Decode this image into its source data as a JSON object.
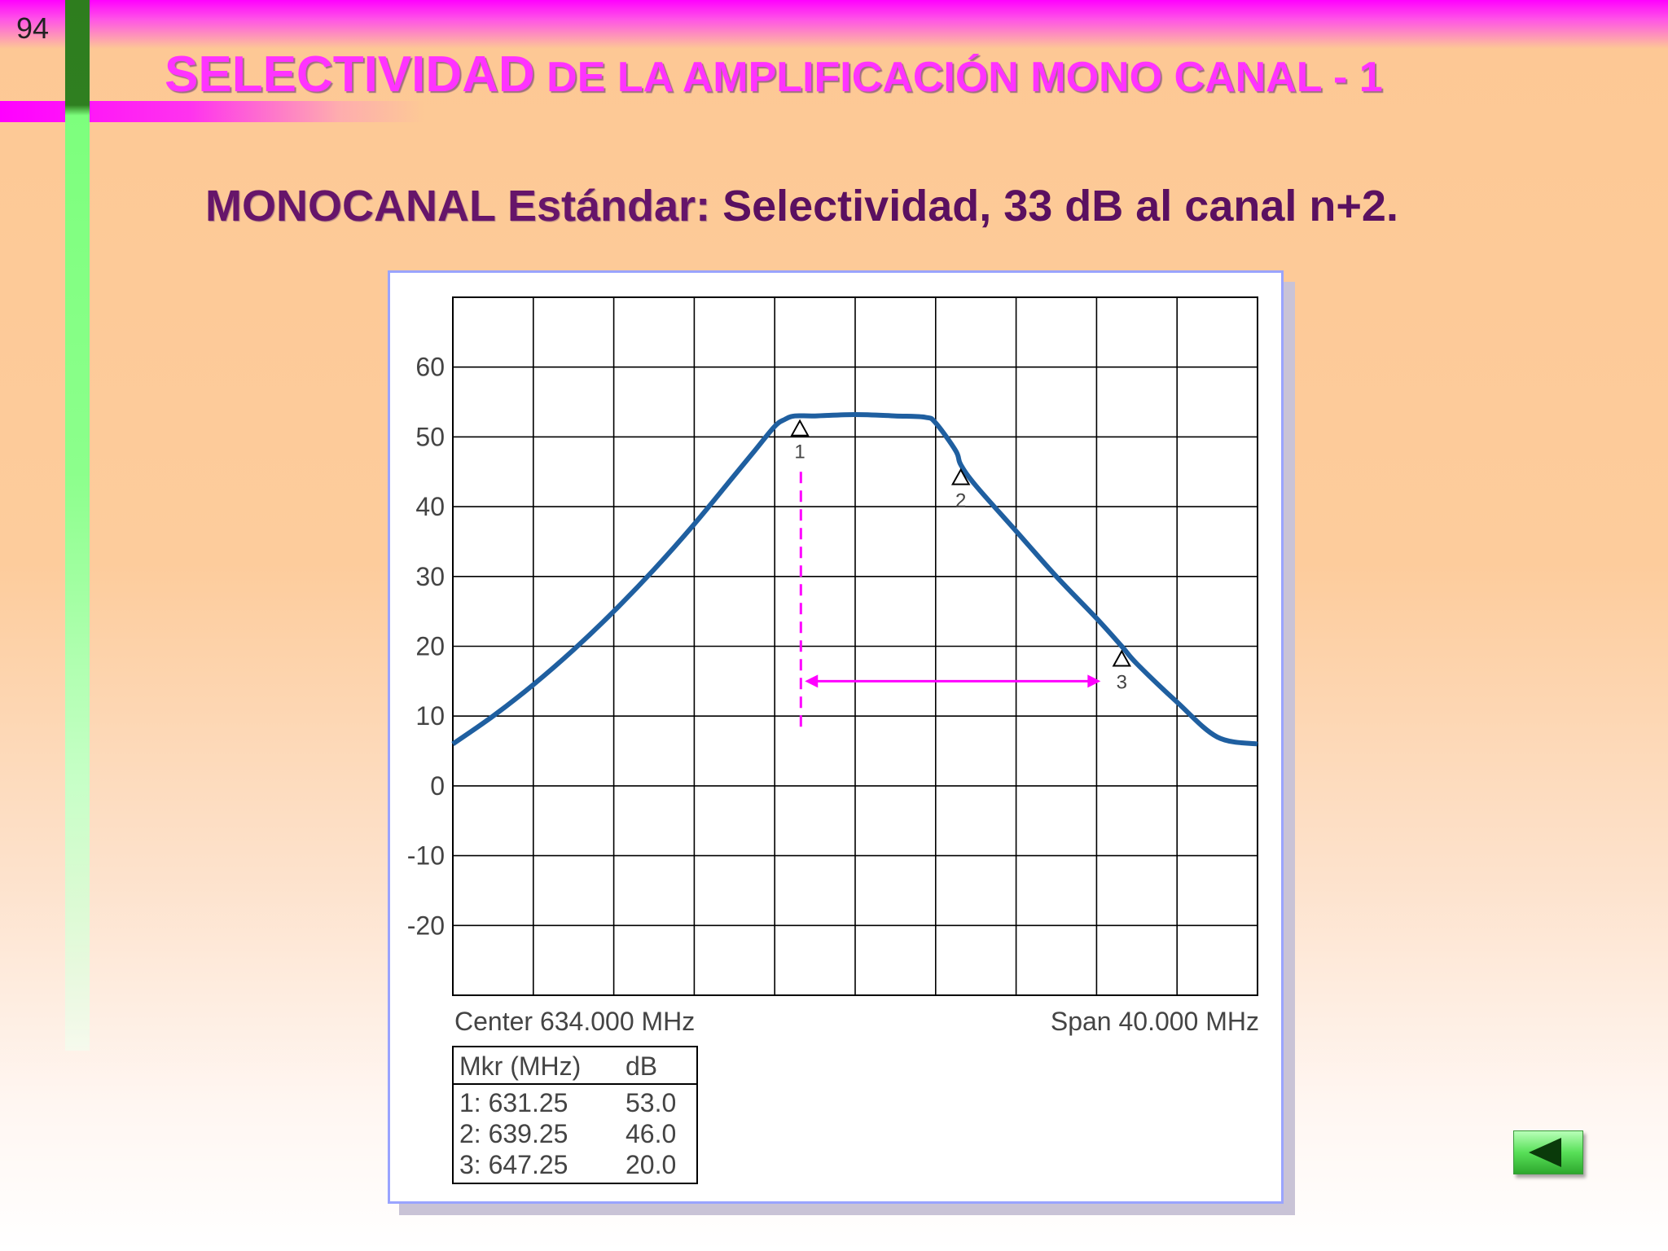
{
  "page_number": "94",
  "title": {
    "big": "SELECTIVIDAD",
    "rest": " DE LA AMPLIFICACIÓN MONO CANAL - 1"
  },
  "subtitle": {
    "part1": "MONOCANAL Estándar:",
    "part2": " Selectividad, 33 dB al canal n+2."
  },
  "colors": {
    "trace": "#1f5fa0",
    "annotation": "#ff00ff",
    "grid": "#000000"
  },
  "nav": {
    "icon": "back-arrow-icon"
  },
  "chart_data": {
    "type": "line",
    "title": "",
    "xlabel": "",
    "ylabel": "",
    "x_unit": "MHz",
    "xlim": [
      614,
      654
    ],
    "ylim": [
      -30,
      70
    ],
    "x_grid_step": 4,
    "grid": true,
    "y_ticks": [
      60,
      50,
      40,
      30,
      20,
      10,
      0,
      -10,
      -20
    ],
    "footer_left": "Center 634.000 MHz",
    "footer_right": "Span 40.000 MHz",
    "series": [
      {
        "x": [
          614,
          616,
          618,
          620,
          622,
          624,
          626,
          628,
          629,
          630,
          630.5,
          631,
          632,
          634,
          636,
          637.5,
          638,
          639,
          639.25,
          640,
          642,
          644,
          646,
          647.25,
          648,
          650,
          652,
          654
        ],
        "y": [
          6,
          10,
          14.5,
          19.5,
          25,
          31,
          37.5,
          44.5,
          48,
          51.5,
          52.5,
          53,
          53,
          53.2,
          53,
          52.8,
          52,
          48,
          46,
          43,
          36.5,
          30,
          24,
          20,
          17.5,
          12,
          7,
          6
        ]
      }
    ],
    "markers": [
      {
        "id": "1",
        "x": 631.25,
        "y": 53.0
      },
      {
        "id": "2",
        "x": 639.25,
        "y": 46.0
      },
      {
        "id": "3",
        "x": 647.25,
        "y": 20.0
      }
    ],
    "marker_table": {
      "header": [
        "Mkr (MHz)",
        "dB"
      ],
      "rows": [
        [
          "1: 631.25",
          "53.0"
        ],
        [
          "2: 639.25",
          "46.0"
        ],
        [
          "3: 647.25",
          "20.0"
        ]
      ]
    },
    "annotations": {
      "vertical_dash": {
        "x": 631.3,
        "y_from": 45,
        "y_to": 8
      },
      "span_arrow": {
        "x_from": 631.5,
        "x_to": 646.2,
        "y": 15
      }
    }
  }
}
